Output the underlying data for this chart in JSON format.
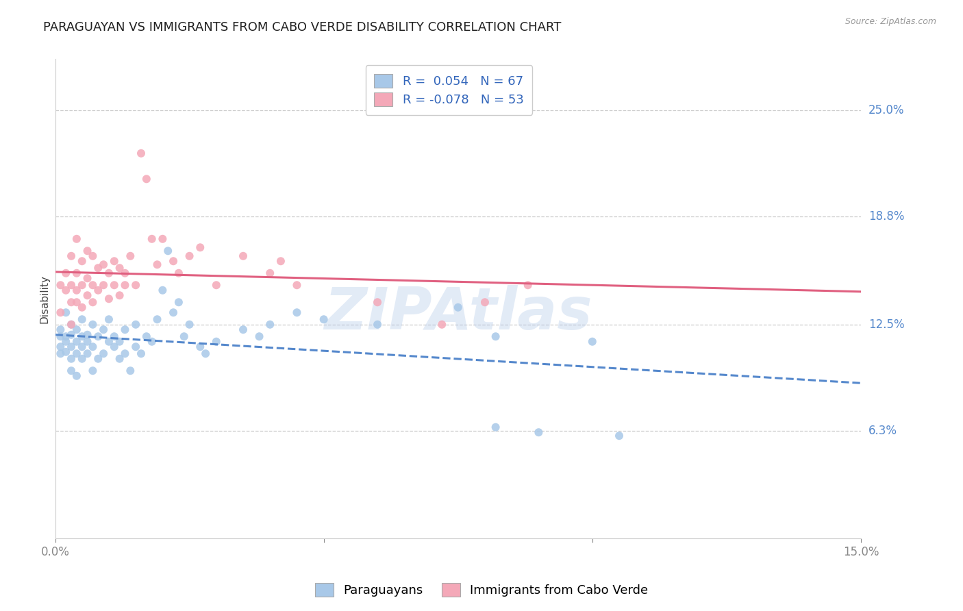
{
  "title": "PARAGUAYAN VS IMMIGRANTS FROM CABO VERDE DISABILITY CORRELATION CHART",
  "source": "Source: ZipAtlas.com",
  "ylabel": "Disability",
  "ytick_labels": [
    "6.3%",
    "12.5%",
    "18.8%",
    "25.0%"
  ],
  "ytick_values": [
    0.063,
    0.125,
    0.188,
    0.25
  ],
  "xmin": 0.0,
  "xmax": 0.15,
  "ymin": 0.0,
  "ymax": 0.28,
  "blue_R": 0.054,
  "blue_N": 67,
  "pink_R": -0.078,
  "pink_N": 53,
  "legend_label_blue": "Paraguayans",
  "legend_label_pink": "Immigrants from Cabo Verde",
  "blue_color": "#a8c8e8",
  "pink_color": "#f4a8b8",
  "blue_line_color": "#5588cc",
  "pink_line_color": "#e06080",
  "blue_scatter": [
    [
      0.001,
      0.118
    ],
    [
      0.001,
      0.112
    ],
    [
      0.001,
      0.108
    ],
    [
      0.001,
      0.122
    ],
    [
      0.002,
      0.115
    ],
    [
      0.002,
      0.109
    ],
    [
      0.002,
      0.132
    ],
    [
      0.002,
      0.118
    ],
    [
      0.003,
      0.112
    ],
    [
      0.003,
      0.105
    ],
    [
      0.003,
      0.098
    ],
    [
      0.003,
      0.125
    ],
    [
      0.003,
      0.119
    ],
    [
      0.004,
      0.115
    ],
    [
      0.004,
      0.108
    ],
    [
      0.004,
      0.122
    ],
    [
      0.004,
      0.095
    ],
    [
      0.005,
      0.118
    ],
    [
      0.005,
      0.112
    ],
    [
      0.005,
      0.128
    ],
    [
      0.005,
      0.105
    ],
    [
      0.006,
      0.115
    ],
    [
      0.006,
      0.108
    ],
    [
      0.006,
      0.119
    ],
    [
      0.007,
      0.125
    ],
    [
      0.007,
      0.112
    ],
    [
      0.007,
      0.098
    ],
    [
      0.008,
      0.118
    ],
    [
      0.008,
      0.105
    ],
    [
      0.009,
      0.122
    ],
    [
      0.009,
      0.108
    ],
    [
      0.01,
      0.115
    ],
    [
      0.01,
      0.128
    ],
    [
      0.011,
      0.112
    ],
    [
      0.011,
      0.118
    ],
    [
      0.012,
      0.105
    ],
    [
      0.012,
      0.115
    ],
    [
      0.013,
      0.122
    ],
    [
      0.013,
      0.108
    ],
    [
      0.014,
      0.098
    ],
    [
      0.015,
      0.112
    ],
    [
      0.015,
      0.125
    ],
    [
      0.016,
      0.108
    ],
    [
      0.017,
      0.118
    ],
    [
      0.018,
      0.115
    ],
    [
      0.019,
      0.128
    ],
    [
      0.02,
      0.145
    ],
    [
      0.021,
      0.168
    ],
    [
      0.022,
      0.132
    ],
    [
      0.023,
      0.138
    ],
    [
      0.024,
      0.118
    ],
    [
      0.025,
      0.125
    ],
    [
      0.027,
      0.112
    ],
    [
      0.028,
      0.108
    ],
    [
      0.03,
      0.115
    ],
    [
      0.035,
      0.122
    ],
    [
      0.038,
      0.118
    ],
    [
      0.04,
      0.125
    ],
    [
      0.045,
      0.132
    ],
    [
      0.05,
      0.128
    ],
    [
      0.06,
      0.125
    ],
    [
      0.075,
      0.135
    ],
    [
      0.082,
      0.118
    ],
    [
      0.082,
      0.065
    ],
    [
      0.09,
      0.062
    ],
    [
      0.1,
      0.115
    ],
    [
      0.105,
      0.06
    ]
  ],
  "pink_scatter": [
    [
      0.001,
      0.148
    ],
    [
      0.001,
      0.132
    ],
    [
      0.002,
      0.155
    ],
    [
      0.002,
      0.145
    ],
    [
      0.003,
      0.165
    ],
    [
      0.003,
      0.148
    ],
    [
      0.003,
      0.138
    ],
    [
      0.003,
      0.125
    ],
    [
      0.004,
      0.175
    ],
    [
      0.004,
      0.155
    ],
    [
      0.004,
      0.145
    ],
    [
      0.004,
      0.138
    ],
    [
      0.005,
      0.162
    ],
    [
      0.005,
      0.148
    ],
    [
      0.005,
      0.135
    ],
    [
      0.006,
      0.168
    ],
    [
      0.006,
      0.152
    ],
    [
      0.006,
      0.142
    ],
    [
      0.007,
      0.165
    ],
    [
      0.007,
      0.148
    ],
    [
      0.007,
      0.138
    ],
    [
      0.008,
      0.158
    ],
    [
      0.008,
      0.145
    ],
    [
      0.009,
      0.16
    ],
    [
      0.009,
      0.148
    ],
    [
      0.01,
      0.155
    ],
    [
      0.01,
      0.14
    ],
    [
      0.011,
      0.162
    ],
    [
      0.011,
      0.148
    ],
    [
      0.012,
      0.158
    ],
    [
      0.012,
      0.142
    ],
    [
      0.013,
      0.155
    ],
    [
      0.013,
      0.148
    ],
    [
      0.014,
      0.165
    ],
    [
      0.015,
      0.148
    ],
    [
      0.016,
      0.225
    ],
    [
      0.017,
      0.21
    ],
    [
      0.018,
      0.175
    ],
    [
      0.019,
      0.16
    ],
    [
      0.02,
      0.175
    ],
    [
      0.022,
      0.162
    ],
    [
      0.023,
      0.155
    ],
    [
      0.025,
      0.165
    ],
    [
      0.027,
      0.17
    ],
    [
      0.03,
      0.148
    ],
    [
      0.035,
      0.165
    ],
    [
      0.04,
      0.155
    ],
    [
      0.042,
      0.162
    ],
    [
      0.045,
      0.148
    ],
    [
      0.06,
      0.138
    ],
    [
      0.072,
      0.125
    ],
    [
      0.08,
      0.138
    ],
    [
      0.088,
      0.148
    ]
  ],
  "background_color": "#ffffff",
  "grid_color": "#cccccc",
  "title_fontsize": 13,
  "axis_label_fontsize": 11,
  "tick_fontsize": 12,
  "legend_fontsize": 13,
  "watermark_text": "ZIPAtlas",
  "watermark_color": "#aec6e8",
  "watermark_alpha": 0.35
}
